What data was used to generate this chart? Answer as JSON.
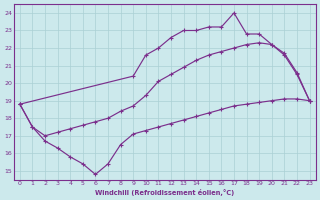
{
  "xlabel": "Windchill (Refroidissement éolien,°C)",
  "bg_color": "#cce9ec",
  "line_color": "#7b2f8c",
  "grid_color": "#aad0d4",
  "xlim": [
    -0.5,
    23.5
  ],
  "ylim": [
    14.5,
    24.5
  ],
  "yticks": [
    15,
    16,
    17,
    18,
    19,
    20,
    21,
    22,
    23,
    24
  ],
  "xticks": [
    0,
    1,
    2,
    3,
    4,
    5,
    6,
    7,
    8,
    9,
    10,
    11,
    12,
    13,
    14,
    15,
    16,
    17,
    18,
    19,
    20,
    21,
    22,
    23
  ],
  "line1_x": [
    0,
    1,
    2,
    3,
    4,
    5,
    6,
    7,
    8,
    9,
    10,
    11,
    12,
    13,
    14,
    15,
    16,
    17,
    18,
    19,
    20,
    21,
    22,
    23
  ],
  "line1_y": [
    18.8,
    17.5,
    16.7,
    16.3,
    15.8,
    15.4,
    14.8,
    15.4,
    16.5,
    17.1,
    17.3,
    17.5,
    17.7,
    17.9,
    18.1,
    18.3,
    18.5,
    18.7,
    18.8,
    18.9,
    19.0,
    19.1,
    19.1,
    19.0
  ],
  "line2_x": [
    0,
    1,
    2,
    3,
    4,
    5,
    6,
    7,
    8,
    9,
    10,
    11,
    12,
    13,
    14,
    15,
    16,
    17,
    18,
    19,
    20,
    21,
    22,
    23
  ],
  "line2_y": [
    18.8,
    17.5,
    17.0,
    17.2,
    17.4,
    17.6,
    17.8,
    18.0,
    18.4,
    18.7,
    19.3,
    20.1,
    20.5,
    20.9,
    21.3,
    21.6,
    21.8,
    22.0,
    22.2,
    22.3,
    22.2,
    21.6,
    20.5,
    19.0
  ],
  "line3_x": [
    0,
    9,
    10,
    11,
    12,
    13,
    14,
    15,
    16,
    17,
    18,
    19,
    20,
    21,
    22,
    23
  ],
  "line3_y": [
    18.8,
    20.4,
    21.6,
    22.0,
    22.6,
    23.0,
    23.0,
    23.2,
    23.2,
    24.0,
    22.8,
    22.8,
    22.2,
    21.7,
    20.6,
    19.0
  ]
}
